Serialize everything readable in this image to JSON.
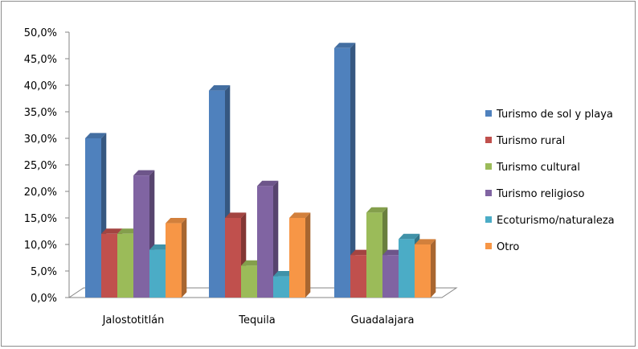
{
  "chart_data": {
    "type": "bar",
    "title": "",
    "xlabel": "",
    "ylabel": "",
    "categories": [
      "Jalostotitlán",
      "Tequila",
      "Guadalajara"
    ],
    "ylim": [
      0,
      50
    ],
    "yticks": [
      "0,0%",
      "5,0%",
      "10,0%",
      "15,0%",
      "20,0%",
      "25,0%",
      "30,0%",
      "35,0%",
      "40,0%",
      "45,0%",
      "50,0%"
    ],
    "grid": false,
    "three_d": true,
    "legend_position": "right",
    "series": [
      {
        "name": "Turismo de sol y playa",
        "color": "#4f81bd",
        "values": [
          30.0,
          39.0,
          47.0
        ]
      },
      {
        "name": "Turismo rural",
        "color": "#c0504d",
        "values": [
          12.0,
          15.0,
          8.0
        ]
      },
      {
        "name": "Turismo cultural",
        "color": "#9bbb59",
        "values": [
          12.0,
          6.0,
          16.0
        ]
      },
      {
        "name": "Turismo religioso",
        "color": "#8064a2",
        "values": [
          23.0,
          21.0,
          8.0
        ]
      },
      {
        "name": "Ecoturismo/naturaleza",
        "color": "#4bacc6",
        "values": [
          9.0,
          4.0,
          11.0
        ]
      },
      {
        "name": "Otro",
        "color": "#f79646",
        "values": [
          14.0,
          15.0,
          10.0
        ]
      }
    ]
  }
}
